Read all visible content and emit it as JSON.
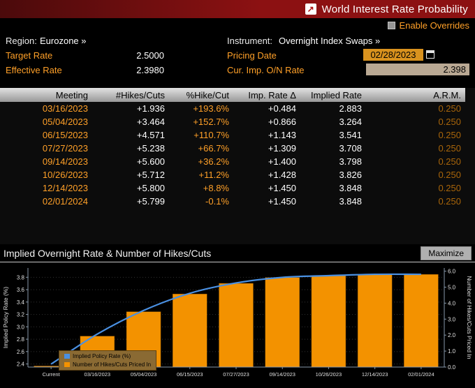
{
  "titlebar": {
    "title": "World Interest Rate Probability"
  },
  "overrides": {
    "label": "Enable Overrides"
  },
  "header": {
    "region_label": "Region:",
    "region_value": "Eurozone »",
    "instrument_label": "Instrument:",
    "instrument_value": "Overnight Index Swaps »",
    "target_rate_label": "Target Rate",
    "target_rate_value": "2.5000",
    "pricing_date_label": "Pricing Date",
    "pricing_date_value": "02/28/2023",
    "effective_rate_label": "Effective Rate",
    "effective_rate_value": "2.3980",
    "cur_imp_label": "Cur. Imp. O/N Rate",
    "cur_imp_value": "2.398"
  },
  "table": {
    "headers": [
      "Meeting",
      "#Hikes/Cuts",
      "%Hike/Cut",
      "Imp. Rate Δ",
      "Implied Rate",
      "A.R.M."
    ],
    "rows": [
      [
        "03/16/2023",
        "+1.936",
        "+193.6%",
        "+0.484",
        "2.883",
        "0.250"
      ],
      [
        "05/04/2023",
        "+3.464",
        "+152.7%",
        "+0.866",
        "3.264",
        "0.250"
      ],
      [
        "06/15/2023",
        "+4.571",
        "+110.7%",
        "+1.143",
        "3.541",
        "0.250"
      ],
      [
        "07/27/2023",
        "+5.238",
        "+66.7%",
        "+1.309",
        "3.708",
        "0.250"
      ],
      [
        "09/14/2023",
        "+5.600",
        "+36.2%",
        "+1.400",
        "3.798",
        "0.250"
      ],
      [
        "10/26/2023",
        "+5.712",
        "+11.2%",
        "+1.428",
        "3.826",
        "0.250"
      ],
      [
        "12/14/2023",
        "+5.800",
        "+8.8%",
        "+1.450",
        "3.848",
        "0.250"
      ],
      [
        "02/01/2024",
        "+5.799",
        "-0.1%",
        "+1.450",
        "3.848",
        "0.250"
      ]
    ]
  },
  "chart_section": {
    "title": "Implied Overnight Rate & Number of Hikes/Cuts",
    "maximize_label": "Maximize"
  },
  "chart_data": {
    "type": "bar",
    "title": "Implied Overnight Rate & Number of Hikes/Cuts",
    "categories": [
      "Current",
      "03/16/2023",
      "05/04/2023",
      "06/15/2023",
      "07/27/2023",
      "09/14/2023",
      "10/26/2023",
      "12/14/2023",
      "02/01/2024"
    ],
    "series": [
      {
        "name": "Implied Policy Rate (%)",
        "type": "line",
        "axis": "left",
        "color": "#4a90e2",
        "values": [
          2.398,
          2.883,
          3.264,
          3.541,
          3.708,
          3.798,
          3.826,
          3.848,
          3.848
        ]
      },
      {
        "name": "Number of Hikes/Cuts Priced In",
        "type": "bar",
        "axis": "right",
        "color": "#f39200",
        "values": [
          0.0,
          1.936,
          3.464,
          4.571,
          5.238,
          5.6,
          5.712,
          5.8,
          5.799
        ]
      }
    ],
    "left_axis": {
      "label": "Implied Policy Rate (%)",
      "min": 2.35,
      "max": 3.95,
      "ticks": [
        2.4,
        2.6,
        2.8,
        3.0,
        3.2,
        3.4,
        3.6,
        3.8
      ]
    },
    "right_axis": {
      "label": "Number of Hikes/Cuts Priced In",
      "min": 0.0,
      "max": 6.2,
      "ticks": [
        0.0,
        1.0,
        2.0,
        3.0,
        4.0,
        5.0,
        6.0
      ]
    },
    "grid": "dotted-horizontal",
    "legend_position": "bottom-left"
  },
  "colors": {
    "title_bar_red": "#8c1112",
    "amber": "#ffa028",
    "dim_amber": "#a8650a",
    "bar_orange": "#f39200",
    "line_blue": "#4a90e2",
    "pricing_box": "#d9921e",
    "cur_imp_box": "#b9a893"
  }
}
